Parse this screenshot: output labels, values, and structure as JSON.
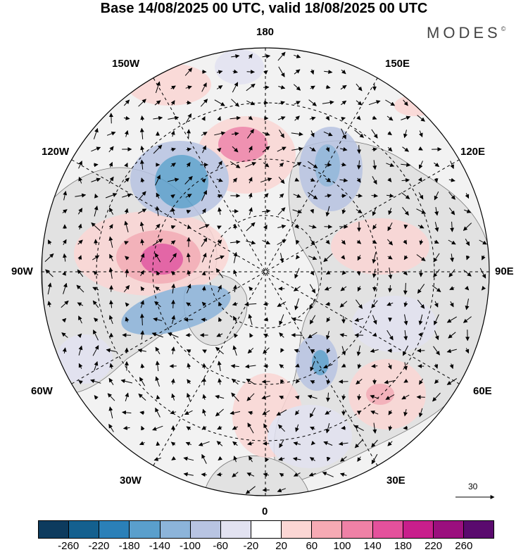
{
  "title": "Base 14/08/2025 00 UTC, valid 18/08/2025 00 UTC",
  "brand": "MODES",
  "brand_mark": "©",
  "longitude_labels": {
    "top": "180",
    "bottom": "0",
    "left": "90W",
    "right": "90E",
    "nw_upper": "150W",
    "nw_lower": "120W",
    "ne_upper": "150E",
    "ne_lower": "120E",
    "sw_upper": "60W",
    "sw_lower": "30W",
    "se_upper": "60E",
    "se_lower": "30E"
  },
  "reference_vector_label": "30",
  "colorbar": {
    "colors": [
      "#0d3b5e",
      "#14608f",
      "#2b80b8",
      "#5a9fcc",
      "#8cb4da",
      "#b8c4e2",
      "#e2e2f1",
      "#ffffff",
      "#fbd6d4",
      "#f6aab4",
      "#ef81a6",
      "#e4519c",
      "#c81f8c",
      "#9b0f7e",
      "#5a0a6e"
    ],
    "tick_labels": [
      "-260",
      "-220",
      "-180",
      "-140",
      "-100",
      "-60",
      "-20",
      "20",
      "60",
      "100",
      "140",
      "180",
      "220",
      "260"
    ]
  },
  "map_legend": {
    "land_fill": "#e8e8e8",
    "coastline": "#666666",
    "grid": "#000000"
  }
}
